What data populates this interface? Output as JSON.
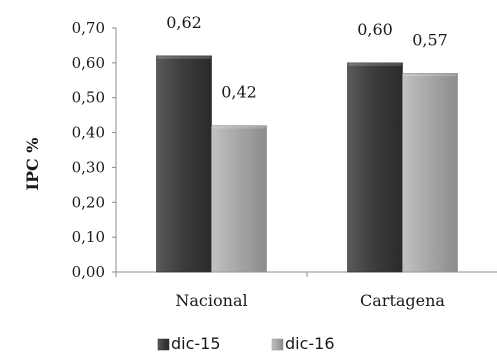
{
  "chart_data": {
    "type": "bar",
    "categories": [
      "Nacional",
      "Cartagena"
    ],
    "series": [
      {
        "name": "dic-15",
        "values": [
          0.62,
          0.6
        ],
        "labels": [
          "0,62",
          "0,60"
        ],
        "color": "#4a4a4a"
      },
      {
        "name": "dic-16",
        "values": [
          0.42,
          0.57
        ],
        "labels": [
          "0,42",
          "0,57"
        ],
        "color": "#a6a6a6"
      }
    ],
    "ylabel": "IPC %",
    "ylim": [
      0,
      0.7
    ],
    "yticks": [
      0,
      0.1,
      0.2,
      0.3,
      0.4,
      0.5,
      0.6,
      0.7
    ],
    "ytick_labels": [
      "0,00",
      "0,10",
      "0,20",
      "0,30",
      "0,40",
      "0,50",
      "0,60",
      "0,70"
    ],
    "grid": false,
    "legend": "bottom"
  }
}
